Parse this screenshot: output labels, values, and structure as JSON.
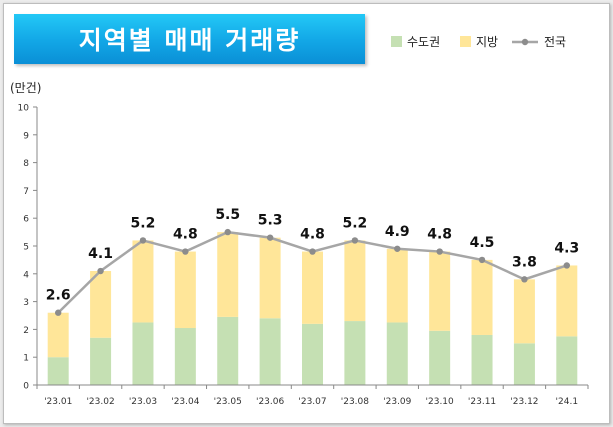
{
  "chart_data": {
    "type": "bar",
    "title": "지역별 매매 거래량",
    "ylabel": "(만건)",
    "ylim": [
      0,
      10
    ],
    "yticks": [
      0,
      1,
      2,
      3,
      4,
      5,
      6,
      7,
      8,
      9,
      10
    ],
    "categories": [
      "'23.01",
      "'23.02",
      "'23.03",
      "'23.04",
      "'23.05",
      "'23.06",
      "'23.07",
      "'23.08",
      "'23.09",
      "'23.10",
      "'23.11",
      "'23.12",
      "'24.1"
    ],
    "series": [
      {
        "name": "수도권",
        "kind": "stacked-bar",
        "color": "#c5e0b3",
        "values": [
          1.0,
          1.7,
          2.25,
          2.05,
          2.45,
          2.4,
          2.2,
          2.3,
          2.25,
          1.95,
          1.8,
          1.5,
          1.75
        ]
      },
      {
        "name": "지방",
        "kind": "stacked-bar",
        "color": "#ffe699",
        "values": [
          1.6,
          2.4,
          2.95,
          2.75,
          3.05,
          2.9,
          2.6,
          2.9,
          2.65,
          2.85,
          2.7,
          2.3,
          2.55
        ]
      },
      {
        "name": "전국",
        "kind": "line",
        "color": "#a6a6a6",
        "values": [
          2.6,
          4.1,
          5.2,
          4.8,
          5.5,
          5.3,
          4.8,
          5.2,
          4.9,
          4.8,
          4.5,
          3.8,
          4.3
        ],
        "labels": [
          "2.6",
          "4.1",
          "5.2",
          "4.8",
          "5.5",
          "5.3",
          "4.8",
          "5.2",
          "4.9",
          "4.8",
          "4.5",
          "3.8",
          "4.3"
        ]
      }
    ],
    "grid": false,
    "legend": "top-right"
  }
}
